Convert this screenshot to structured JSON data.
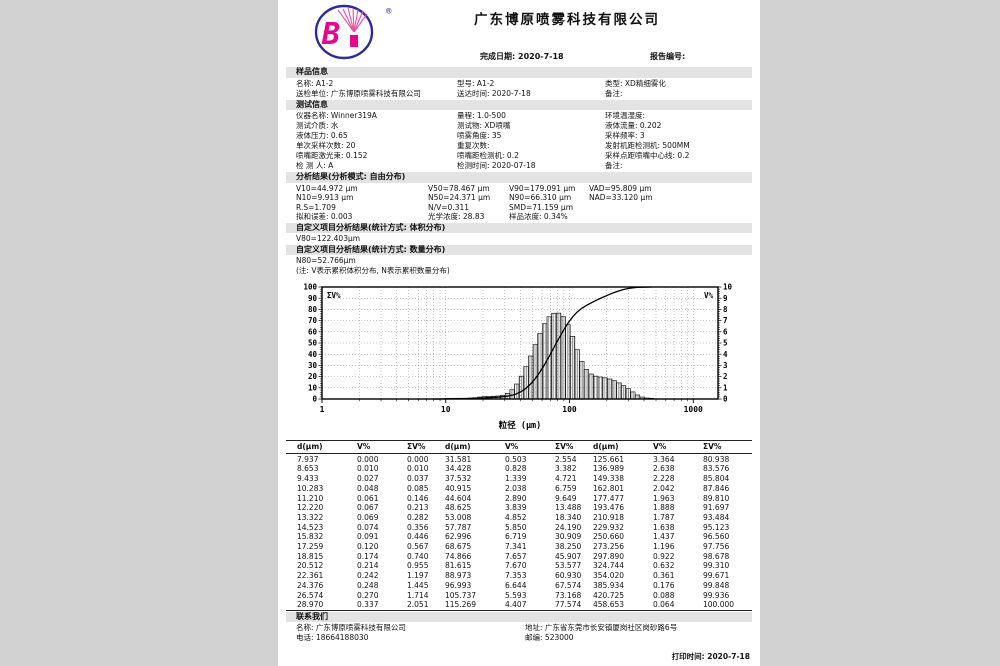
{
  "header": {
    "company": "广东博原喷雾科技有限公司",
    "registered_mark": "®",
    "logo_letter": "B",
    "complete_date_label": "完成日期:",
    "complete_date": "2020-7-18",
    "report_no_label": "报告编号:",
    "report_no": ""
  },
  "sample_info": {
    "title": "样品信息",
    "rows": [
      [
        {
          "label": "名称:",
          "value": "A1-2"
        },
        {
          "label": "型号:",
          "value": "A1-2"
        },
        {
          "label": "类型:",
          "value": "XD精细雾化"
        }
      ],
      [
        {
          "label": "送检单位:",
          "value": "广东博原喷雾科技有限公司"
        },
        {
          "label": "送达时间:",
          "value": "2020-7-18"
        },
        {
          "label": "备注:",
          "value": ""
        }
      ]
    ]
  },
  "test_info": {
    "title": "测试信息",
    "rows": [
      [
        {
          "label": "仪器名称:",
          "value": "Winner319A"
        },
        {
          "label": "量程:",
          "value": "1.0-500"
        },
        {
          "label": "环境温湿度:",
          "value": ""
        }
      ],
      [
        {
          "label": "测试介质:",
          "value": "水"
        },
        {
          "label": "测试物:",
          "value": "XD喷嘴"
        },
        {
          "label": "液体流量:",
          "value": "0.202"
        }
      ],
      [
        {
          "label": "液体压力:",
          "value": "0.65"
        },
        {
          "label": "喷雾角度:",
          "value": "35"
        },
        {
          "label": "采样频率:",
          "value": "3"
        }
      ],
      [
        {
          "label": "单次采样次数:",
          "value": "20"
        },
        {
          "label": "重复次数:",
          "value": ""
        },
        {
          "label": "发射机距检测机:",
          "value": "500MM"
        }
      ],
      [
        {
          "label": "喷嘴距激光束:",
          "value": "0.152"
        },
        {
          "label": "喷嘴距检测机:",
          "value": "0.2"
        },
        {
          "label": "采样点距喷嘴中心线:",
          "value": "0.2"
        }
      ],
      [
        {
          "label": "检 测 人:",
          "value": "A"
        },
        {
          "label": "检测时间:",
          "value": "2020-07-18"
        },
        {
          "label": "备注:",
          "value": ""
        }
      ]
    ]
  },
  "analysis": {
    "title": "分析结果(分析模式: 自由分布)",
    "rows": [
      [
        "V10=44.972 μm",
        "V50=78.467 μm",
        "V90=179.091 μm",
        "VAD=95.809 μm"
      ],
      [
        "N10=9.913 μm",
        "N50=24.371 μm",
        "N90=66.310 μm",
        "NAD=33.120 μm"
      ],
      [
        "R.S=1.709",
        "N/V=0.311",
        "SMD=71.159 μm",
        ""
      ],
      [
        "拟和误差: 0.003",
        "光学浓度: 28.83",
        "样品浓度: 0.34%",
        ""
      ]
    ]
  },
  "custom_volume": {
    "title": "自定义项目分析结果(统计方式: 体积分布)",
    "value": "V80=122.403μm"
  },
  "custom_number": {
    "title": "自定义项目分析结果(统计方式: 数量分布)",
    "value": "N80=52.766μm"
  },
  "note": "(注: V表示累积体积分布, N表示累积数量分布)",
  "chart_data": {
    "type": "histogram+cumulative-line",
    "x_scale": "log",
    "xlabel": "粒径 (μm)",
    "x_ticks": [
      "1",
      "10",
      "100",
      "1000"
    ],
    "xlim": [
      1,
      1585
    ],
    "left_axis": {
      "label": "ΣV%",
      "min": 0,
      "max": 100,
      "step": 10
    },
    "right_axis": {
      "label": "V%",
      "min": 0,
      "max": 10,
      "step": 1
    },
    "grid": "dotted",
    "diameters": [
      7.937,
      8.653,
      9.433,
      10.283,
      11.21,
      12.22,
      13.322,
      14.523,
      15.832,
      17.259,
      18.815,
      20.512,
      22.361,
      24.376,
      26.574,
      28.97,
      31.581,
      34.428,
      37.532,
      40.915,
      44.604,
      48.625,
      53.008,
      57.787,
      62.996,
      68.675,
      74.866,
      81.615,
      88.973,
      96.993,
      105.737,
      115.269,
      125.661,
      136.989,
      149.338,
      162.801,
      177.477,
      193.476,
      210.918,
      229.932,
      250.66,
      273.256,
      297.89,
      324.744,
      354.02,
      385.934,
      420.725,
      458.653
    ],
    "v_percent": [
      0.0,
      0.01,
      0.027,
      0.048,
      0.061,
      0.067,
      0.069,
      0.074,
      0.091,
      0.12,
      0.174,
      0.214,
      0.242,
      0.248,
      0.27,
      0.337,
      0.503,
      0.828,
      1.339,
      2.038,
      2.89,
      3.839,
      4.852,
      5.85,
      6.719,
      7.341,
      7.657,
      7.67,
      7.353,
      6.644,
      5.593,
      4.407,
      3.364,
      2.638,
      2.228,
      2.042,
      1.963,
      1.888,
      1.787,
      1.638,
      1.437,
      1.196,
      0.922,
      0.632,
      0.361,
      0.176,
      0.088,
      0.064
    ],
    "cum_v_percent": [
      0.0,
      0.01,
      0.037,
      0.085,
      0.146,
      0.213,
      0.282,
      0.356,
      0.446,
      0.567,
      0.74,
      0.955,
      1.197,
      1.445,
      1.714,
      2.051,
      2.554,
      3.382,
      4.721,
      6.759,
      9.649,
      13.488,
      18.34,
      24.19,
      30.909,
      38.25,
      45.907,
      53.577,
      60.93,
      67.574,
      73.168,
      77.574,
      80.938,
      83.576,
      85.804,
      87.846,
      89.81,
      91.697,
      93.484,
      95.123,
      96.56,
      97.756,
      98.678,
      99.31,
      99.671,
      99.848,
      99.936,
      100.0
    ]
  },
  "table": {
    "headers": [
      "d(μm)",
      "V%",
      "ΣV%"
    ],
    "groups": 3,
    "rows_per_group": 16
  },
  "contact": {
    "title": "联系我们",
    "name_label": "名称:",
    "name": "广东博原喷雾科技有限公司",
    "address_label": "地址:",
    "address": "广东省东莞市长安镇厦岗社区岗砂路6号",
    "phone_label": "电话:",
    "phone": "18664188030",
    "zip_label": "邮编:",
    "zip": "523000"
  },
  "footer": {
    "print_time_label": "打印时间:",
    "print_time": "2020-7-18"
  }
}
